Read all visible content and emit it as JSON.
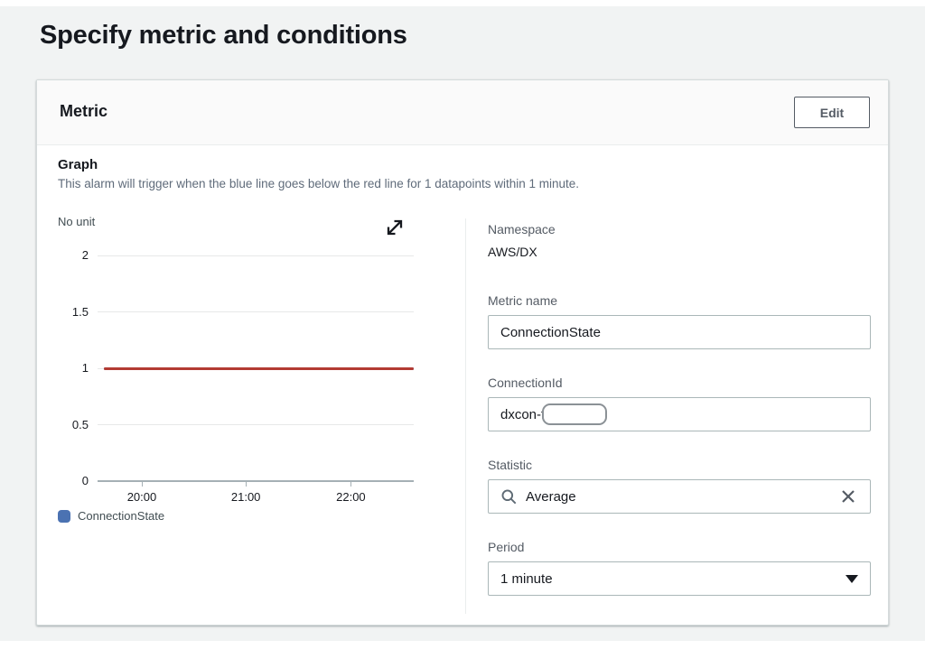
{
  "page": {
    "title": "Specify metric and conditions"
  },
  "metric_card": {
    "title": "Metric",
    "edit_button": "Edit",
    "graph": {
      "heading": "Graph",
      "description": "This alarm will trigger when the blue line goes below the red line for 1 datapoints within 1 minute."
    },
    "form": {
      "namespace": {
        "label": "Namespace",
        "value": "AWS/DX"
      },
      "metric_name": {
        "label": "Metric name",
        "value": "ConnectionState"
      },
      "connection_id": {
        "label": "ConnectionId",
        "value_visible": "dxcon-f",
        "value_redacted": true
      },
      "statistic": {
        "label": "Statistic",
        "value": "Average"
      },
      "period": {
        "label": "Period",
        "value": "1 minute"
      }
    },
    "icons": {
      "expand": "diagonal-expand-arrows",
      "search": "magnifier",
      "clear": "x-mark",
      "dropdown": "triangle-down"
    }
  },
  "chart_data": {
    "type": "line",
    "unit_label": "No unit",
    "ylim": [
      0,
      2
    ],
    "y_ticks": [
      2,
      1.5,
      1,
      0.5,
      0
    ],
    "x_ticks": [
      {
        "label": "20:00",
        "pos": 0.135
      },
      {
        "label": "21:00",
        "pos": 0.466
      },
      {
        "label": "22:00",
        "pos": 0.8
      }
    ],
    "series": [
      {
        "name": "ConnectionState",
        "color": "#4b72b2",
        "values": [
          1,
          1,
          1,
          1
        ]
      }
    ],
    "threshold": {
      "value": 1,
      "color": "#b33b33"
    },
    "legend": [
      {
        "label": "ConnectionState",
        "color": "#4b72b2"
      }
    ],
    "grid_color": "#e7e8e8",
    "axis_color": "#a5b0b5"
  }
}
